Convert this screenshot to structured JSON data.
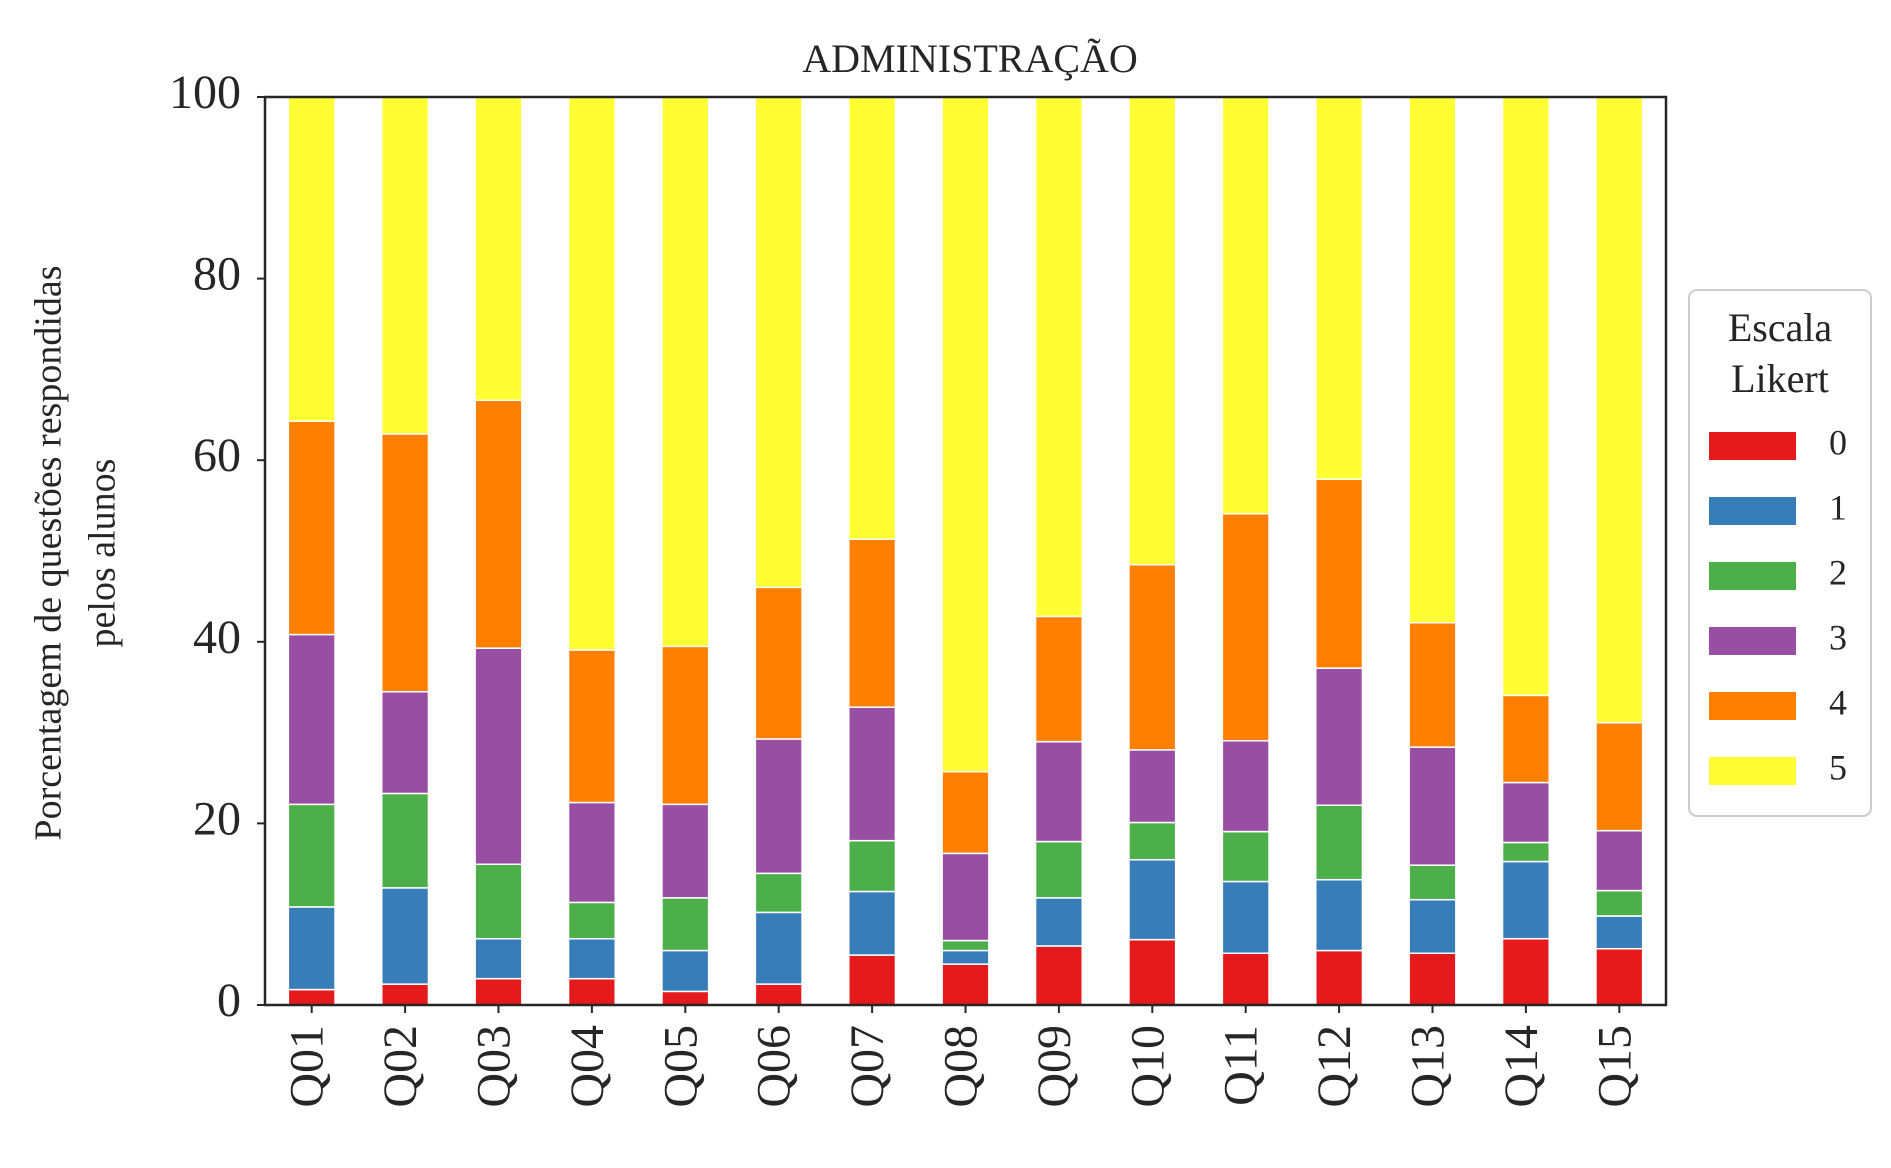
{
  "chart_data": {
    "type": "bar",
    "stacked": true,
    "title": "ADMINISTRAÇÃO",
    "ylabel_line1": "Porcentagem de questões respondidas",
    "ylabel_line2": "pelos alunos",
    "xlabel": "",
    "ylim": [
      0,
      100
    ],
    "yticks": [
      "0",
      "20",
      "40",
      "60",
      "80",
      "100"
    ],
    "grid": false,
    "legend_position": "right",
    "legend_title_line1": "Escala",
    "legend_title_line2": "Likert",
    "categories": [
      "Q01",
      "Q02",
      "Q03",
      "Q04",
      "Q05",
      "Q06",
      "Q07",
      "Q08",
      "Q09",
      "Q10",
      "Q11",
      "Q12",
      "Q13",
      "Q14",
      "Q15"
    ],
    "series": [
      {
        "name": "0",
        "color": "#e41a1c",
        "values": [
          1.7,
          2.3,
          2.9,
          2.9,
          1.5,
          2.3,
          5.5,
          4.5,
          6.5,
          7.2,
          5.7,
          6.0,
          5.7,
          7.3,
          6.2
        ]
      },
      {
        "name": "1",
        "color": "#377eb8",
        "values": [
          9.1,
          10.6,
          4.4,
          4.4,
          4.5,
          7.9,
          7.0,
          1.5,
          5.3,
          8.8,
          7.9,
          7.8,
          5.9,
          8.5,
          3.6
        ]
      },
      {
        "name": "2",
        "color": "#4daf4a",
        "values": [
          11.3,
          10.4,
          8.2,
          4.0,
          5.8,
          4.3,
          5.6,
          1.1,
          6.2,
          4.1,
          5.5,
          8.2,
          3.8,
          2.1,
          2.8
        ]
      },
      {
        "name": "3",
        "color": "#984ea3",
        "values": [
          18.7,
          11.2,
          23.8,
          11.0,
          10.3,
          14.8,
          14.7,
          9.6,
          11.0,
          8.0,
          10.0,
          15.1,
          13.0,
          6.6,
          6.6
        ]
      },
      {
        "name": "4",
        "color": "#ff7f00",
        "values": [
          23.5,
          28.4,
          27.3,
          16.8,
          17.4,
          16.7,
          18.5,
          9.0,
          13.8,
          20.4,
          25.0,
          20.8,
          13.7,
          9.6,
          11.9
        ]
      },
      {
        "name": "5",
        "color": "#ffff33",
        "values": [
          35.7,
          37.1,
          33.4,
          60.9,
          60.5,
          54.0,
          48.7,
          74.3,
          57.2,
          51.5,
          45.9,
          42.1,
          57.9,
          65.9,
          68.9
        ]
      }
    ]
  }
}
